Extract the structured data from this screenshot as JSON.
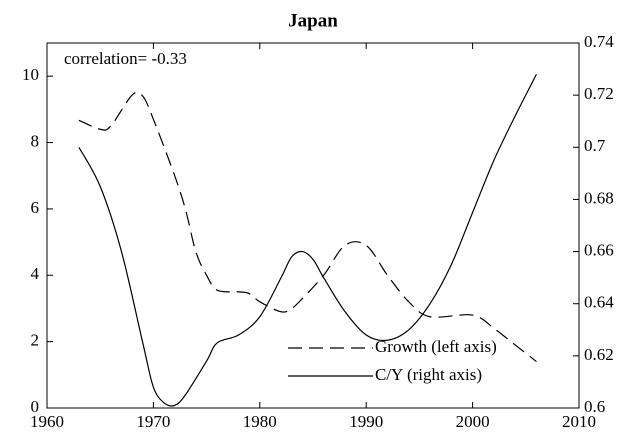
{
  "chart_data": {
    "type": "line",
    "title": "Japan",
    "annotation": "correlation= -0.33",
    "xlim": [
      1960,
      2010
    ],
    "xticks": [
      1960,
      1970,
      1980,
      1990,
      2000,
      2010
    ],
    "ylim": [
      0,
      11
    ],
    "yticks": [
      0,
      2,
      4,
      6,
      8,
      10
    ],
    "y2lim": [
      0.6,
      0.74
    ],
    "y2ticks": [
      0.6,
      0.62,
      0.64,
      0.66,
      0.68,
      0.7,
      0.72,
      0.74
    ],
    "legend": "lower right",
    "series": [
      {
        "name": "Growth (left axis)",
        "color": "#000000",
        "dash": "dashed",
        "x": [
          1963,
          1965,
          1966,
          1968,
          1969,
          1970,
          1972,
          1973,
          1974,
          1975,
          1976,
          1978,
          1979,
          1980,
          1982,
          1983,
          1984,
          1986,
          1988,
          1990,
          1992,
          1994,
          1996,
          2000,
          2002,
          2004,
          2006
        ],
        "values": [
          8.67,
          8.4,
          8.5,
          9.43,
          9.4,
          8.7,
          7.0,
          6.0,
          4.7,
          4.0,
          3.55,
          3.5,
          3.45,
          3.2,
          2.9,
          3.0,
          3.3,
          4.0,
          4.9,
          4.9,
          4.0,
          3.2,
          2.75,
          2.8,
          2.4,
          1.9,
          1.4
        ]
      },
      {
        "name": "C/Y (right axis)",
        "color": "#000000",
        "dash": "solid",
        "axis": "y2",
        "x": [
          1963,
          1965,
          1967,
          1969,
          1970,
          1971,
          1972,
          1973,
          1975,
          1976,
          1978,
          1980,
          1982,
          1983,
          1984,
          1985,
          1986,
          1988,
          1990,
          1992,
          1994,
          1996,
          1998,
          2000,
          2002,
          2004,
          2006
        ],
        "values": [
          0.7,
          0.685,
          0.66,
          0.625,
          0.608,
          0.602,
          0.601,
          0.605,
          0.618,
          0.625,
          0.628,
          0.635,
          0.65,
          0.658,
          0.66,
          0.657,
          0.65,
          0.637,
          0.628,
          0.626,
          0.63,
          0.64,
          0.655,
          0.675,
          0.695,
          0.712,
          0.728
        ]
      }
    ]
  }
}
